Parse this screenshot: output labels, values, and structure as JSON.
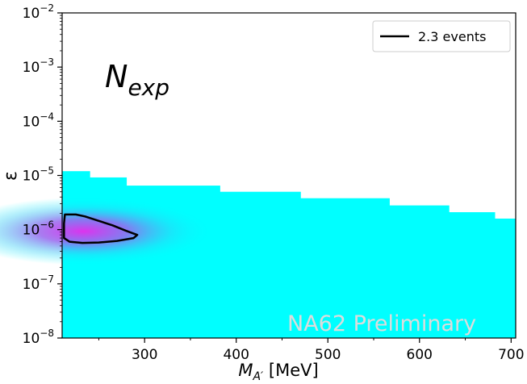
{
  "chart_data": {
    "type": "heatmap",
    "xlabel_main": "M",
    "xlabel_sub": "A′",
    "xlabel_unit": " [MeV]",
    "ylabel": "ε",
    "xlim": [
      210,
      705
    ],
    "ylim_log10": [
      -8,
      -2
    ],
    "y_scale": "log",
    "x_ticks": [
      300,
      400,
      500,
      600,
      700
    ],
    "y_ticks": [
      {
        "exp": -8,
        "base": "10",
        "sup": "−8"
      },
      {
        "exp": -7,
        "base": "10",
        "sup": "−7"
      },
      {
        "exp": -6,
        "base": "10",
        "sup": "−6"
      },
      {
        "exp": -5,
        "base": "10",
        "sup": "−5"
      },
      {
        "exp": -4,
        "base": "10",
        "sup": "−4"
      },
      {
        "exp": -3,
        "base": "10",
        "sup": "−3"
      },
      {
        "exp": -2,
        "base": "10",
        "sup": "−2"
      }
    ],
    "grid": false,
    "legend_position": "top-right",
    "legend_label": "2.3 events",
    "annotation_main": "N",
    "annotation_sub": "exp",
    "watermark": "NA62 Preliminary",
    "colors": {
      "region_fill": "#00ffff",
      "hotspot": "#dd44ee",
      "contour": "#000000"
    },
    "region_upper_boundary": [
      {
        "x_from": 210,
        "x_to": 240,
        "eps": 1.2e-05
      },
      {
        "x_from": 240,
        "x_to": 280,
        "eps": 9.2e-06
      },
      {
        "x_from": 280,
        "x_to": 382,
        "eps": 6.5e-06
      },
      {
        "x_from": 382,
        "x_to": 470,
        "eps": 5e-06
      },
      {
        "x_from": 470,
        "x_to": 567,
        "eps": 3.8e-06
      },
      {
        "x_from": 567,
        "x_to": 632,
        "eps": 2.8e-06
      },
      {
        "x_from": 632,
        "x_to": 682,
        "eps": 2.1e-06
      },
      {
        "x_from": 682,
        "x_to": 705,
        "eps": 1.6e-06
      }
    ],
    "hotspot_center": {
      "x": 235,
      "eps": 1e-06
    },
    "contour_2p3_events": [
      {
        "x": 213,
        "eps": 1.9e-06
      },
      {
        "x": 225,
        "eps": 1.9e-06
      },
      {
        "x": 235,
        "eps": 1.75e-06
      },
      {
        "x": 250,
        "eps": 1.45e-06
      },
      {
        "x": 265,
        "eps": 1.2e-06
      },
      {
        "x": 280,
        "eps": 9.5e-07
      },
      {
        "x": 292,
        "eps": 8e-07
      },
      {
        "x": 288,
        "eps": 7e-07
      },
      {
        "x": 270,
        "eps": 6.2e-07
      },
      {
        "x": 250,
        "eps": 5.8e-07
      },
      {
        "x": 232,
        "eps": 5.7e-07
      },
      {
        "x": 218,
        "eps": 6e-07
      },
      {
        "x": 212,
        "eps": 7e-07
      },
      {
        "x": 212,
        "eps": 1.3e-06
      }
    ]
  }
}
